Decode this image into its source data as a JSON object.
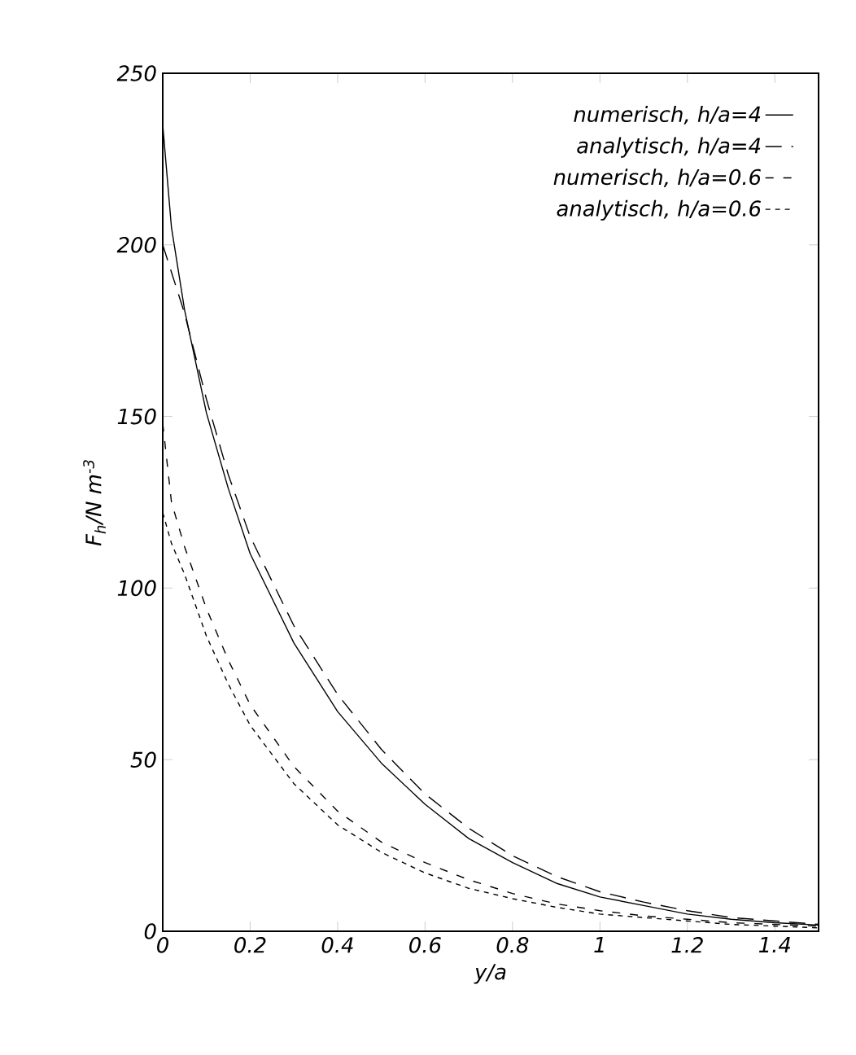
{
  "chart_data": {
    "type": "line",
    "xlabel": "y/a",
    "ylabel": "F$_{h}$/N m$^{-3}$",
    "xlim": [
      0,
      1.5
    ],
    "ylim": [
      0,
      250
    ],
    "xticks": [
      0,
      0.2,
      0.4,
      0.6,
      0.8,
      1,
      1.2,
      1.4
    ],
    "yticks": [
      0,
      50,
      100,
      150,
      200,
      250
    ],
    "x": [
      0,
      0.02,
      0.05,
      0.1,
      0.15,
      0.2,
      0.3,
      0.4,
      0.5,
      0.6,
      0.7,
      0.8,
      0.9,
      1.0,
      1.1,
      1.2,
      1.3,
      1.4,
      1.5
    ],
    "legend": "top right",
    "grid": false,
    "marker": "none",
    "series": [
      {
        "name": "numerisch, h/a=4",
        "color": "#000000",
        "line_style": "solid",
        "values": [
          235,
          205,
          181,
          151,
          129,
          110,
          84,
          64,
          49,
          37,
          27,
          20,
          14,
          10,
          7.5,
          5,
          3.5,
          2.5,
          1.8
        ]
      },
      {
        "name": "analytisch, h/a=4",
        "color": "#000000",
        "line_style": "dashed",
        "values": [
          200,
          192,
          180,
          155,
          133,
          115,
          89,
          69,
          53,
          40,
          30,
          22,
          16,
          11.5,
          8.5,
          6,
          4,
          3,
          2
        ]
      },
      {
        "name": "numerisch, h/a=0.6",
        "color": "#000000",
        "line_style": "dashdotted",
        "values": [
          148,
          125,
          112,
          94,
          79,
          66,
          48,
          35,
          26,
          20,
          15,
          11,
          8,
          6,
          4.5,
          3.5,
          2.5,
          2,
          1.5
        ]
      },
      {
        "name": "analytisch, h/a=0.6",
        "color": "#000000",
        "line_style": "dotted",
        "values": [
          122,
          113,
          104,
          86,
          72,
          60,
          43,
          31,
          23,
          17,
          12.5,
          9.5,
          7,
          5,
          4,
          3,
          2,
          1.5,
          1
        ]
      }
    ]
  }
}
